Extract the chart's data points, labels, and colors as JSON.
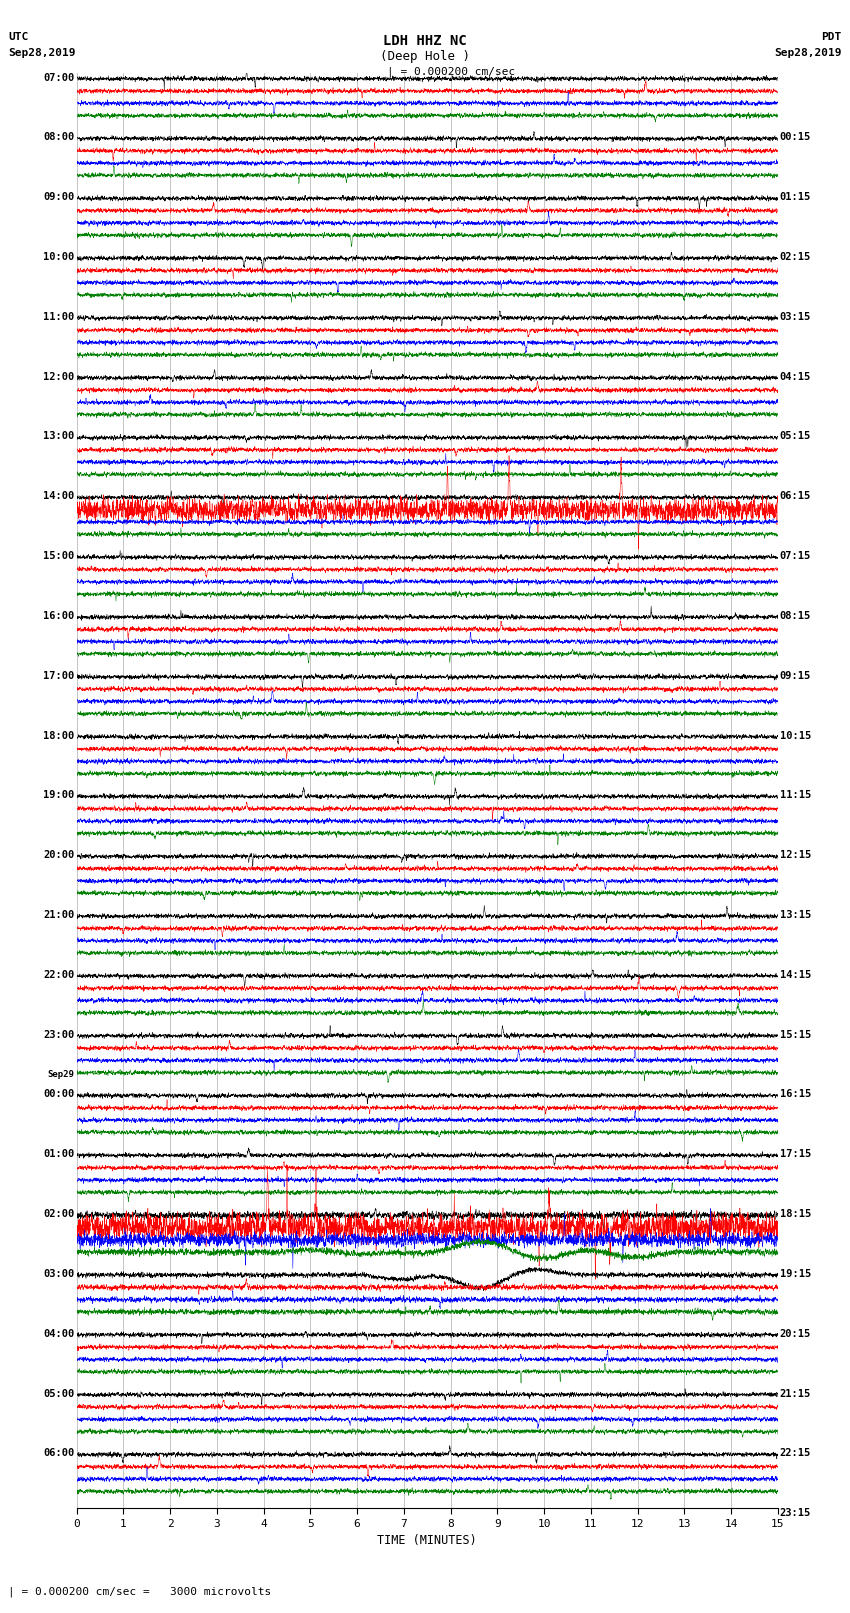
{
  "title_center": "LDH HHZ NC",
  "title_sub": "(Deep Hole )",
  "scale_text": "= 0.000200 cm/sec",
  "bottom_text": "= 0.000200 cm/sec =   3000 microvolts",
  "xlabel": "TIME (MINUTES)",
  "utc_label": "UTC",
  "utc_date": "Sep28,2019",
  "pdt_label": "PDT",
  "pdt_date": "Sep28,2019",
  "left_times": [
    "07:00",
    "08:00",
    "09:00",
    "10:00",
    "11:00",
    "12:00",
    "13:00",
    "14:00",
    "15:00",
    "16:00",
    "17:00",
    "18:00",
    "19:00",
    "20:00",
    "21:00",
    "22:00",
    "23:00",
    "00:00",
    "01:00",
    "02:00",
    "03:00",
    "04:00",
    "05:00",
    "06:00"
  ],
  "sep29_row": 17,
  "right_times": [
    "00:15",
    "01:15",
    "02:15",
    "03:15",
    "04:15",
    "05:15",
    "06:15",
    "07:15",
    "08:15",
    "09:15",
    "10:15",
    "11:15",
    "12:15",
    "13:15",
    "14:15",
    "15:15",
    "16:15",
    "17:15",
    "18:15",
    "19:15",
    "20:15",
    "21:15",
    "22:15",
    "23:15"
  ],
  "colors": [
    "black",
    "red",
    "blue",
    "green"
  ],
  "n_rows": 24,
  "n_subrows": 4,
  "minutes": 15,
  "bg_color": "white",
  "grid_color": "#999999",
  "fig_width": 8.5,
  "fig_height": 16.13,
  "event_rows": [
    7,
    19,
    20,
    21,
    22
  ],
  "big_event_rows": [
    19,
    20
  ],
  "wavy_rows": [
    20
  ]
}
